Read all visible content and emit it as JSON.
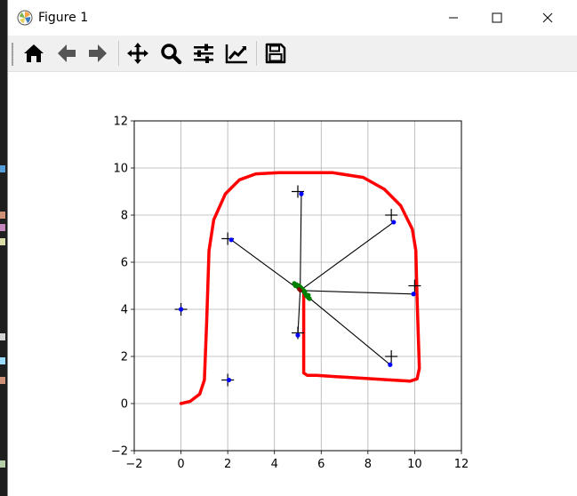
{
  "window": {
    "title": "Figure 1",
    "app_icon": "matplotlib-icon",
    "controls": [
      {
        "name": "minimize-button",
        "icon": "minimize-icon"
      },
      {
        "name": "maximize-button",
        "icon": "maximize-icon"
      },
      {
        "name": "close-button",
        "icon": "close-icon"
      }
    ]
  },
  "toolbar": {
    "tools": [
      {
        "name": "home-button",
        "icon": "home-icon"
      },
      {
        "name": "back-button",
        "icon": "arrow-left-icon"
      },
      {
        "name": "forward-button",
        "icon": "arrow-right-icon"
      },
      {
        "name": "pan-button",
        "icon": "move-icon"
      },
      {
        "name": "zoom-button",
        "icon": "zoom-icon"
      },
      {
        "name": "configure-subplots-button",
        "icon": "sliders-icon"
      },
      {
        "name": "edit-axis-button",
        "icon": "chart-line-icon"
      },
      {
        "name": "save-button",
        "icon": "save-icon"
      }
    ]
  },
  "chart_data": {
    "type": "scatter",
    "title": "",
    "xlabel": "",
    "ylabel": "",
    "xlim": [
      -2,
      12
    ],
    "ylim": [
      -2,
      12
    ],
    "xticks": [
      -2,
      0,
      2,
      4,
      6,
      8,
      10,
      12
    ],
    "yticks": [
      -2,
      0,
      2,
      4,
      6,
      8,
      10,
      12
    ],
    "grid": true,
    "colors": {
      "path": "#ff0000",
      "landmarks": "#000000",
      "estimates": "#0000ff",
      "particles": "#008000",
      "rays": "#000000"
    },
    "series": [
      {
        "kind": "path",
        "points": [
          [
            0,
            0
          ],
          [
            0.4,
            0.1
          ],
          [
            0.8,
            0.4
          ],
          [
            1.0,
            1.0
          ],
          [
            1.1,
            3.5
          ],
          [
            1.2,
            6.5
          ],
          [
            1.4,
            7.8
          ],
          [
            1.9,
            8.9
          ],
          [
            2.5,
            9.5
          ],
          [
            3.2,
            9.75
          ],
          [
            4.2,
            9.8
          ],
          [
            6.5,
            9.8
          ],
          [
            7.8,
            9.6
          ],
          [
            8.7,
            9.1
          ],
          [
            9.4,
            8.4
          ],
          [
            9.9,
            7.4
          ],
          [
            10.05,
            6.5
          ],
          [
            10.1,
            4.5
          ],
          [
            10.2,
            1.5
          ],
          [
            10.1,
            1.05
          ],
          [
            9.8,
            0.95
          ],
          [
            9.0,
            1.0
          ],
          [
            6.5,
            1.15
          ],
          [
            5.8,
            1.2
          ],
          [
            5.4,
            1.2
          ],
          [
            5.25,
            1.3
          ],
          [
            5.25,
            2.5
          ],
          [
            5.25,
            4.7
          ]
        ]
      },
      {
        "kind": "landmarks",
        "points": [
          [
            0,
            4
          ],
          [
            2,
            1
          ],
          [
            2,
            7
          ],
          [
            5,
            9
          ],
          [
            5,
            3
          ],
          [
            9,
            8
          ],
          [
            10,
            5
          ],
          [
            9,
            2
          ]
        ]
      },
      {
        "kind": "estimates",
        "points": [
          [
            0,
            4
          ],
          [
            2.05,
            1.0
          ],
          [
            2.15,
            6.95
          ],
          [
            5.15,
            8.9
          ],
          [
            5.0,
            2.9
          ],
          [
            9.1,
            7.7
          ],
          [
            9.95,
            4.65
          ],
          [
            8.95,
            1.65
          ]
        ]
      },
      {
        "kind": "observations",
        "origin": [
          5.1,
          4.8
        ],
        "targets": [
          [
            2.15,
            6.95
          ],
          [
            5.15,
            8.9
          ],
          [
            5.0,
            2.9
          ],
          [
            9.1,
            7.7
          ],
          [
            9.95,
            4.65
          ],
          [
            8.95,
            1.65
          ]
        ]
      },
      {
        "kind": "particles",
        "points": [
          [
            4.85,
            5.1
          ],
          [
            4.95,
            5.05
          ],
          [
            5.05,
            5.0
          ],
          [
            5.1,
            4.95
          ],
          [
            5.15,
            4.9
          ],
          [
            5.2,
            4.85
          ],
          [
            5.25,
            4.8
          ],
          [
            5.3,
            4.75
          ],
          [
            5.3,
            4.7
          ],
          [
            5.35,
            4.6
          ],
          [
            5.4,
            4.55
          ],
          [
            5.45,
            4.5
          ],
          [
            5.5,
            4.45
          ],
          [
            5.45,
            4.6
          ],
          [
            5.0,
            4.95
          ],
          [
            4.9,
            5.0
          ]
        ]
      },
      {
        "kind": "robot",
        "points": [
          [
            5.1,
            4.8
          ],
          [
            5.05,
            4.85
          ]
        ]
      }
    ]
  }
}
